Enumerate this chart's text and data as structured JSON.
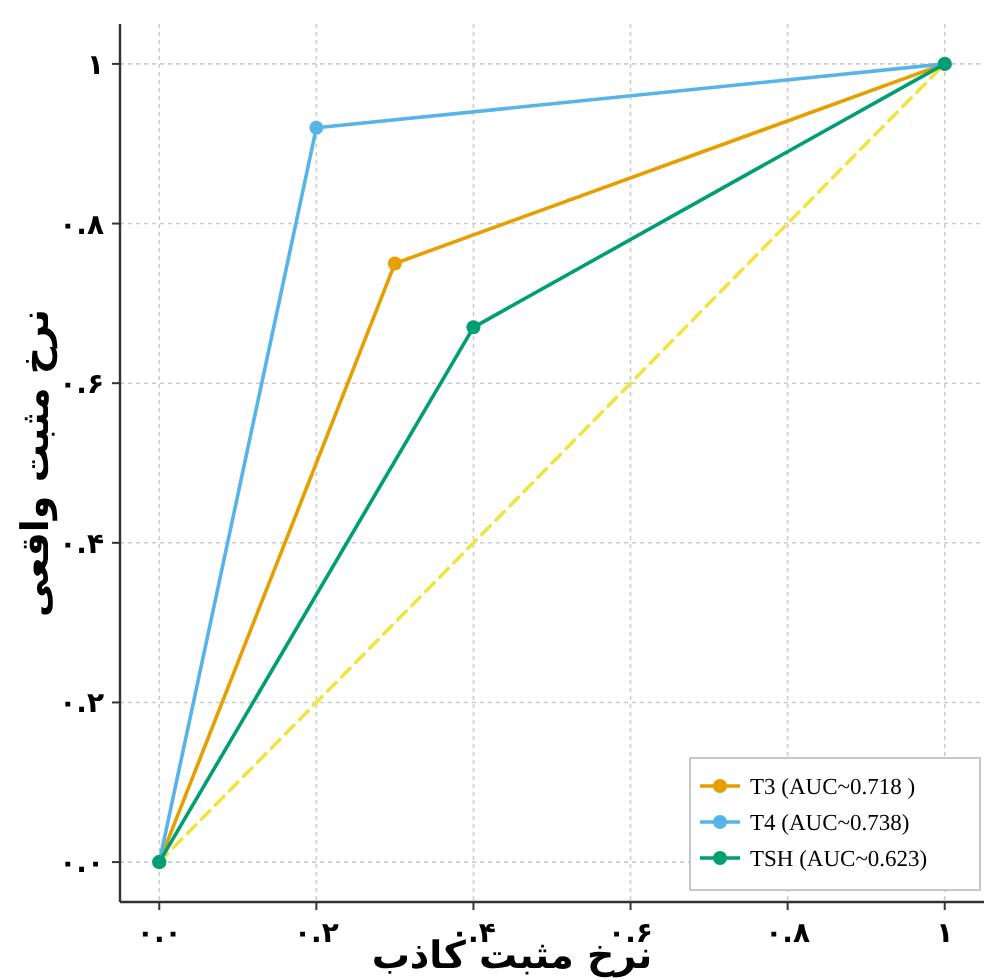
{
  "chart_data": {
    "type": "line",
    "xlabel": "نرخ مثبت کاذب",
    "ylabel": "نرخ مثبت واقعی",
    "xlim": [
      -0.05,
      1.05
    ],
    "ylim": [
      -0.05,
      1.05
    ],
    "xticks": [
      {
        "value": 0,
        "label": "۰.۰"
      },
      {
        "value": 0.2,
        "label": "۰.۲"
      },
      {
        "value": 0.4,
        "label": "۰.۴"
      },
      {
        "value": 0.6,
        "label": "۰.۶"
      },
      {
        "value": 0.8,
        "label": "۰.۸"
      },
      {
        "value": 1,
        "label": "۱"
      }
    ],
    "yticks": [
      {
        "value": 0,
        "label": "۰.۰"
      },
      {
        "value": 0.2,
        "label": "۰.۲"
      },
      {
        "value": 0.4,
        "label": "۰.۴"
      },
      {
        "value": 0.6,
        "label": "۰.۶"
      },
      {
        "value": 0.8,
        "label": "۰.۸"
      },
      {
        "value": 1,
        "label": "۱"
      }
    ],
    "grid": true,
    "legend": "bottom right",
    "marker": "circle",
    "line_style": "solid",
    "series": [
      {
        "name": "T3 (AUC~0.718 )",
        "color": "#e69f00",
        "x": [
          0,
          0.3,
          1
        ],
        "values": [
          0,
          0.75,
          1
        ]
      },
      {
        "name": "T4 (AUC~0.738)",
        "color": "#56b4e9",
        "x": [
          0,
          0.2,
          1
        ],
        "values": [
          0,
          0.92,
          1
        ]
      },
      {
        "name": "TSH (AUC~0.623)",
        "color": "#009e73",
        "x": [
          0,
          0.4,
          1
        ],
        "values": [
          0,
          0.67,
          1
        ]
      },
      {
        "color": "#f0e442",
        "x": [
          0,
          1
        ],
        "values": [
          0,
          1
        ],
        "line_style": "dashed",
        "marker": "none"
      }
    ]
  }
}
